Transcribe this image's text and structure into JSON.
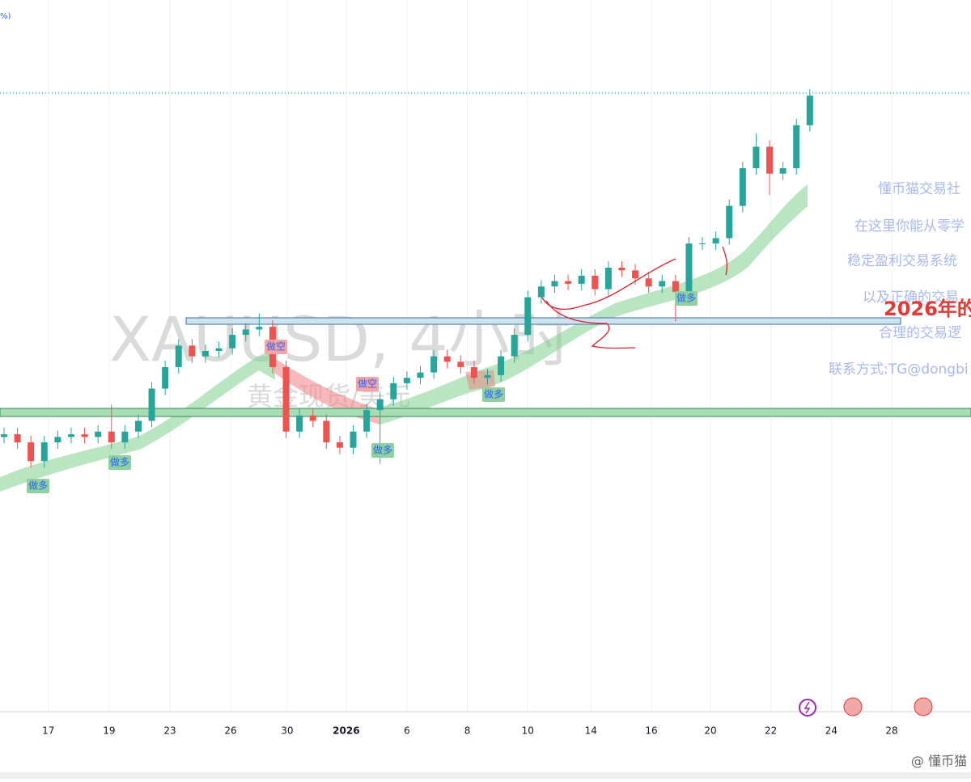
{
  "chart_data": {
    "type": "candlestick",
    "title": "XAUUSD, 4小时",
    "subtitle": "黄金现货/美元",
    "corner_note": "%)",
    "open": [
      4340,
      4345,
      4330,
      4295,
      4330,
      4340,
      4345,
      4340,
      4350,
      4330,
      4350,
      4370,
      4430,
      4470,
      4510,
      4490,
      4500,
      4505,
      4530,
      4540,
      4545,
      4470,
      4350,
      4380,
      4370,
      4330,
      4320,
      4350,
      4390,
      4410,
      4440,
      4450,
      4460,
      4490,
      4480,
      4470,
      4450,
      4455,
      4490,
      4530,
      4600,
      4620,
      4630,
      4625,
      4640,
      4615,
      4655,
      4650,
      4635,
      4620,
      4630,
      4610,
      4700,
      4700,
      4710,
      4770,
      4840,
      4880,
      4830,
      4840,
      4920
    ],
    "high": [
      4357,
      4357,
      4342,
      4342,
      4352,
      4357,
      4357,
      4362,
      4400,
      4362,
      4382,
      4442,
      4482,
      4522,
      4522,
      4512,
      4517,
      4542,
      4552,
      4570,
      4557,
      4482,
      4392,
      4392,
      4382,
      4342,
      4362,
      4402,
      4422,
      4452,
      4462,
      4472,
      4502,
      4502,
      4492,
      4482,
      4467,
      4502,
      4542,
      4612,
      4632,
      4642,
      4642,
      4652,
      4652,
      4667,
      4667,
      4662,
      4647,
      4642,
      4642,
      4712,
      4712,
      4722,
      4782,
      4852,
      4905,
      4892,
      4852,
      4932,
      4987
    ],
    "low": [
      4328,
      4318,
      4283,
      4283,
      4318,
      4328,
      4328,
      4328,
      4318,
      4318,
      4338,
      4358,
      4418,
      4458,
      4478,
      4478,
      4488,
      4493,
      4518,
      4528,
      4458,
      4338,
      4338,
      4358,
      4318,
      4308,
      4308,
      4338,
      4290,
      4398,
      4428,
      4438,
      4448,
      4468,
      4458,
      4438,
      4438,
      4443,
      4478,
      4518,
      4588,
      4608,
      4613,
      4613,
      4603,
      4603,
      4638,
      4623,
      4608,
      4608,
      4555,
      4598,
      4688,
      4688,
      4698,
      4758,
      4828,
      4790,
      4818,
      4828,
      4908
    ],
    "close": [
      4345,
      4330,
      4295,
      4330,
      4340,
      4345,
      4340,
      4350,
      4330,
      4350,
      4370,
      4430,
      4470,
      4510,
      4490,
      4500,
      4505,
      4530,
      4540,
      4545,
      4470,
      4350,
      4380,
      4370,
      4330,
      4320,
      4350,
      4390,
      4410,
      4440,
      4450,
      4460,
      4490,
      4480,
      4470,
      4450,
      4455,
      4490,
      4530,
      4600,
      4620,
      4630,
      4625,
      4640,
      4615,
      4655,
      4650,
      4635,
      4620,
      4630,
      4610,
      4700,
      4700,
      4710,
      4770,
      4840,
      4880,
      4830,
      4840,
      4920,
      4975
    ],
    "up_color": "#26a69a",
    "down_color": "#ef5350",
    "xlim": [
      -0.3,
      72.0
    ],
    "ylim": [
      3829,
      5153
    ],
    "xticks": [
      {
        "value": 3.3,
        "label": "17"
      },
      {
        "value": 7.83,
        "label": "19"
      },
      {
        "value": 12.35,
        "label": "23"
      },
      {
        "value": 16.87,
        "label": "26"
      },
      {
        "value": 21.08,
        "label": "30"
      },
      {
        "value": 25.48,
        "label": "2026"
      },
      {
        "value": 30.0,
        "label": "6"
      },
      {
        "value": 34.5,
        "label": "8"
      },
      {
        "value": 39.0,
        "label": "10"
      },
      {
        "value": 43.7,
        "label": "14"
      },
      {
        "value": 48.2,
        "label": "16"
      },
      {
        "value": 52.6,
        "label": "20"
      },
      {
        "value": 57.1,
        "label": "22"
      },
      {
        "value": 61.6,
        "label": "24"
      },
      {
        "value": 66.1,
        "label": "28"
      }
    ],
    "grid": true,
    "signals": [
      "做多",
      "做多",
      "做空",
      "做空",
      "做多",
      "做多",
      "做多"
    ],
    "side_notes": [
      "懂币猫交易社",
      "在这里你能从零学",
      "稳定盈利交易系统",
      "以及正确的交易",
      "合理的交易逻",
      "联系方式:TG@dongbi"
    ],
    "headline": "2026年的",
    "footer_brand": "@ 懂币猫"
  }
}
